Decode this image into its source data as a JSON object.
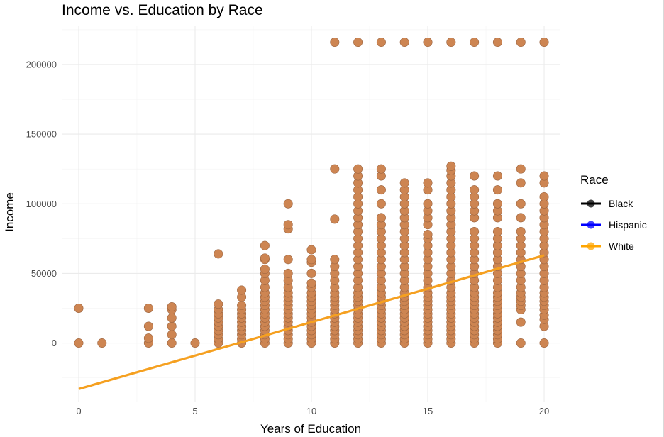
{
  "chart_data": {
    "type": "scatter",
    "title": "Income vs. Education by Race",
    "xlabel": "Years of Education",
    "ylabel": "Income",
    "xlim": [
      -0.7,
      20.7
    ],
    "ylim": [
      -42000,
      228000
    ],
    "x_ticks": [
      0,
      5,
      10,
      15,
      20
    ],
    "y_ticks": [
      0,
      50000,
      100000,
      150000,
      200000
    ],
    "grid": true,
    "legend": {
      "title": "Race",
      "position": "right",
      "entries": [
        {
          "label": "Black",
          "color": "#000000"
        },
        {
          "label": "Hispanic",
          "color": "#0000ff"
        },
        {
          "label": "White",
          "color": "#ffa500"
        }
      ]
    },
    "point_color": "#cd8552",
    "trend_color": "#f5a020",
    "trend_line": {
      "x": [
        0,
        20
      ],
      "y": [
        -33000,
        63000
      ]
    },
    "points": [
      {
        "x": 0,
        "y": [
          0,
          25000
        ]
      },
      {
        "x": 1,
        "y": [
          0
        ]
      },
      {
        "x": 3,
        "y": [
          0,
          3500,
          12000,
          25000
        ]
      },
      {
        "x": 4,
        "y": [
          0,
          6000,
          12000,
          18000,
          24000,
          26000
        ]
      },
      {
        "x": 5,
        "y": [
          0
        ]
      },
      {
        "x": 6,
        "y": [
          0,
          3000,
          6000,
          9000,
          12000,
          15000,
          18000,
          21000,
          24000,
          28000,
          64000
        ]
      },
      {
        "x": 7,
        "y": [
          0,
          3000,
          6000,
          9000,
          12000,
          15000,
          18000,
          21000,
          24000,
          27000,
          33000,
          38000
        ]
      },
      {
        "x": 8,
        "y": [
          0,
          3000,
          6000,
          9000,
          12000,
          15000,
          18000,
          21000,
          24000,
          27000,
          30000,
          33000,
          36000,
          40000,
          45000,
          50000,
          53000,
          60000,
          61000,
          70000
        ]
      },
      {
        "x": 9,
        "y": [
          0,
          3000,
          6000,
          9000,
          12000,
          15000,
          18000,
          21000,
          24000,
          27000,
          30000,
          33000,
          36000,
          40000,
          45000,
          50000,
          60000,
          82000,
          85000,
          100000
        ]
      },
      {
        "x": 10,
        "y": [
          0,
          3000,
          6000,
          9000,
          12000,
          15000,
          18000,
          21000,
          24000,
          27000,
          30000,
          33000,
          36000,
          40000,
          43000,
          50000,
          58000,
          60000,
          67000
        ]
      },
      {
        "x": 11,
        "y": [
          0,
          3000,
          6000,
          9000,
          12000,
          15000,
          18000,
          21000,
          24000,
          27000,
          30000,
          33000,
          36000,
          40000,
          45000,
          50000,
          55000,
          60000,
          89000,
          125000,
          216000
        ]
      },
      {
        "x": 12,
        "y": [
          0,
          3000,
          6000,
          9000,
          12000,
          15000,
          18000,
          21000,
          24000,
          27000,
          30000,
          33000,
          36000,
          40000,
          45000,
          50000,
          55000,
          60000,
          65000,
          70000,
          75000,
          80000,
          85000,
          90000,
          95000,
          100000,
          105000,
          110000,
          115000,
          120000,
          125000,
          216000
        ]
      },
      {
        "x": 13,
        "y": [
          0,
          3000,
          6000,
          9000,
          12000,
          15000,
          18000,
          21000,
          24000,
          27000,
          30000,
          33000,
          36000,
          40000,
          45000,
          50000,
          55000,
          60000,
          65000,
          70000,
          75000,
          80000,
          85000,
          90000,
          100000,
          110000,
          120000,
          125000,
          216000
        ]
      },
      {
        "x": 14,
        "y": [
          0,
          3000,
          6000,
          9000,
          12000,
          15000,
          18000,
          21000,
          24000,
          27000,
          30000,
          33000,
          36000,
          40000,
          45000,
          50000,
          55000,
          60000,
          65000,
          70000,
          75000,
          80000,
          85000,
          90000,
          95000,
          100000,
          105000,
          110000,
          115000,
          216000
        ]
      },
      {
        "x": 15,
        "y": [
          0,
          3000,
          6000,
          9000,
          12000,
          15000,
          18000,
          21000,
          24000,
          27000,
          30000,
          33000,
          36000,
          40000,
          45000,
          50000,
          55000,
          60000,
          65000,
          70000,
          75000,
          78000,
          85000,
          90000,
          95000,
          100000,
          110000,
          115000,
          216000
        ]
      },
      {
        "x": 16,
        "y": [
          0,
          3000,
          6000,
          9000,
          12000,
          15000,
          18000,
          21000,
          24000,
          27000,
          30000,
          33000,
          36000,
          40000,
          45000,
          50000,
          55000,
          60000,
          65000,
          70000,
          75000,
          80000,
          85000,
          90000,
          95000,
          100000,
          105000,
          110000,
          115000,
          120000,
          124000,
          127000,
          216000
        ]
      },
      {
        "x": 17,
        "y": [
          0,
          3000,
          6000,
          9000,
          12000,
          15000,
          18000,
          21000,
          24000,
          27000,
          30000,
          33000,
          36000,
          40000,
          45000,
          50000,
          55000,
          60000,
          65000,
          70000,
          75000,
          80000,
          90000,
          95000,
          100000,
          105000,
          110000,
          120000,
          216000
        ]
      },
      {
        "x": 18,
        "y": [
          0,
          3000,
          6000,
          9000,
          12000,
          15000,
          18000,
          21000,
          24000,
          27000,
          30000,
          33000,
          36000,
          40000,
          45000,
          50000,
          55000,
          60000,
          65000,
          70000,
          75000,
          80000,
          90000,
          95000,
          100000,
          110000,
          120000,
          216000
        ]
      },
      {
        "x": 19,
        "y": [
          0,
          15000,
          24000,
          27000,
          30000,
          33000,
          36000,
          40000,
          45000,
          50000,
          55000,
          60000,
          65000,
          70000,
          75000,
          80000,
          90000,
          100000,
          115000,
          125000,
          216000
        ]
      },
      {
        "x": 20,
        "y": [
          0,
          12000,
          17000,
          20000,
          24000,
          27000,
          30000,
          33000,
          36000,
          40000,
          45000,
          50000,
          55000,
          60000,
          65000,
          70000,
          75000,
          80000,
          85000,
          90000,
          95000,
          100000,
          105000,
          115000,
          120000,
          216000
        ]
      }
    ]
  }
}
